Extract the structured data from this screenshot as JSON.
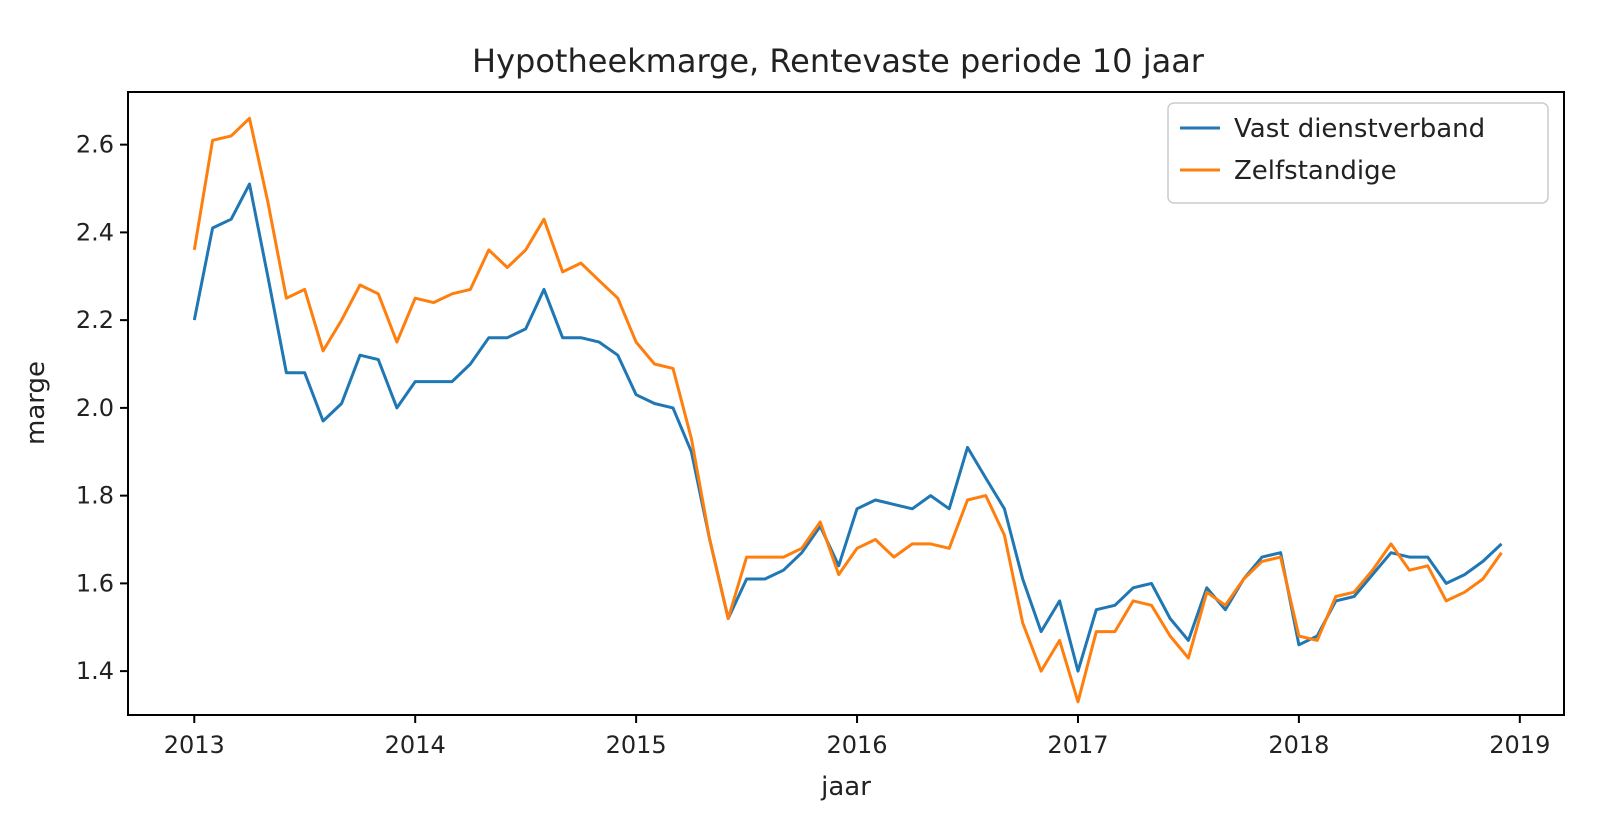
{
  "chart_data": {
    "type": "line",
    "title": "Hypotheekmarge, Rentevaste periode 10 jaar",
    "xlabel": "jaar",
    "ylabel": "marge",
    "xlim": [
      2012.7,
      2019.2
    ],
    "ylim": [
      1.3,
      2.72
    ],
    "x_ticks": [
      2013,
      2014,
      2015,
      2016,
      2017,
      2018,
      2019
    ],
    "x_tick_labels": [
      "2013",
      "2014",
      "2015",
      "2016",
      "2017",
      "2018",
      "2019"
    ],
    "y_ticks": [
      1.4,
      1.6,
      1.8,
      2.0,
      2.2,
      2.4,
      2.6
    ],
    "y_tick_labels": [
      "1.4",
      "1.6",
      "1.8",
      "2.0",
      "2.2",
      "2.4",
      "2.6"
    ],
    "grid": false,
    "legend_position": "top-right",
    "x": [
      2013.0,
      2013.083,
      2013.167,
      2013.25,
      2013.333,
      2013.417,
      2013.5,
      2013.583,
      2013.667,
      2013.75,
      2013.833,
      2013.917,
      2014.0,
      2014.083,
      2014.167,
      2014.25,
      2014.333,
      2014.417,
      2014.5,
      2014.583,
      2014.667,
      2014.75,
      2014.833,
      2014.917,
      2015.0,
      2015.083,
      2015.167,
      2015.25,
      2015.333,
      2015.417,
      2015.5,
      2015.583,
      2015.667,
      2015.75,
      2015.833,
      2015.917,
      2016.0,
      2016.083,
      2016.167,
      2016.25,
      2016.333,
      2016.417,
      2016.5,
      2016.583,
      2016.667,
      2016.75,
      2016.833,
      2016.917,
      2017.0,
      2017.083,
      2017.167,
      2017.25,
      2017.333,
      2017.417,
      2017.5,
      2017.583,
      2017.667,
      2017.75,
      2017.833,
      2017.917,
      2018.0,
      2018.083,
      2018.167,
      2018.25,
      2018.333,
      2018.417,
      2018.5,
      2018.583,
      2018.667,
      2018.75,
      2018.833,
      2018.917
    ],
    "series": [
      {
        "name": "Vast dienstverband",
        "color": "#1f77b4",
        "values": [
          2.2,
          2.41,
          2.43,
          2.51,
          2.3,
          2.08,
          2.08,
          1.97,
          2.01,
          2.12,
          2.11,
          2.0,
          2.06,
          2.06,
          2.06,
          2.1,
          2.16,
          2.16,
          2.18,
          2.27,
          2.16,
          2.16,
          2.15,
          2.12,
          2.03,
          2.01,
          2.0,
          1.9,
          1.7,
          1.52,
          1.61,
          1.61,
          1.63,
          1.67,
          1.73,
          1.64,
          1.77,
          1.79,
          1.78,
          1.77,
          1.8,
          1.77,
          1.91,
          1.84,
          1.77,
          1.61,
          1.49,
          1.56,
          1.4,
          1.54,
          1.55,
          1.59,
          1.6,
          1.52,
          1.47,
          1.59,
          1.54,
          1.61,
          1.66,
          1.67,
          1.46,
          1.48,
          1.56,
          1.57,
          1.62,
          1.67,
          1.66,
          1.66,
          1.6,
          1.62,
          1.65,
          1.69
        ]
      },
      {
        "name": "Zelfstandige",
        "color": "#ff7f0e",
        "values": [
          2.36,
          2.61,
          2.62,
          2.66,
          2.47,
          2.25,
          2.27,
          2.13,
          2.2,
          2.28,
          2.26,
          2.15,
          2.25,
          2.24,
          2.26,
          2.27,
          2.36,
          2.32,
          2.36,
          2.43,
          2.31,
          2.33,
          2.29,
          2.25,
          2.15,
          2.1,
          2.09,
          1.93,
          1.7,
          1.52,
          1.66,
          1.66,
          1.66,
          1.68,
          1.74,
          1.62,
          1.68,
          1.7,
          1.66,
          1.69,
          1.69,
          1.68,
          1.79,
          1.8,
          1.71,
          1.51,
          1.4,
          1.47,
          1.33,
          1.49,
          1.49,
          1.56,
          1.55,
          1.48,
          1.43,
          1.58,
          1.55,
          1.61,
          1.65,
          1.66,
          1.48,
          1.47,
          1.57,
          1.58,
          1.63,
          1.69,
          1.63,
          1.64,
          1.56,
          1.58,
          1.61,
          1.67
        ]
      }
    ]
  }
}
